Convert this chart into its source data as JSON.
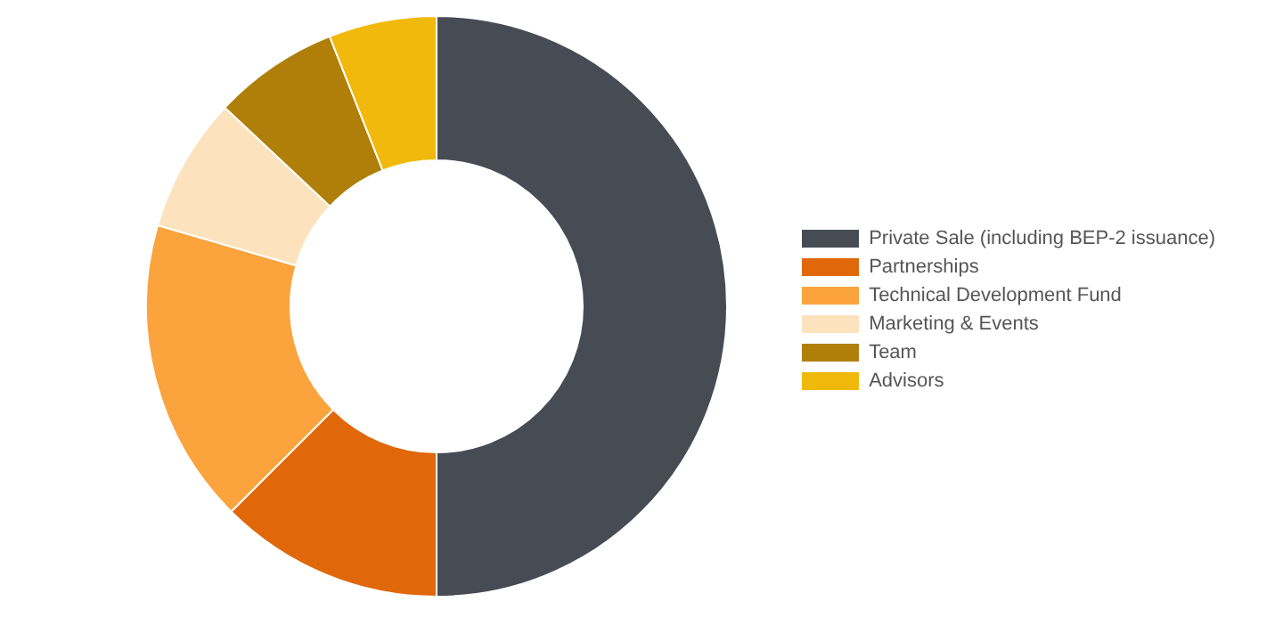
{
  "chart_data": {
    "type": "donut",
    "categories": [
      "Private Sale (including BEP-2 issuance)",
      "Partnerships",
      "Technical Development Fund",
      "Marketing & Events",
      "Team",
      "Advisors"
    ],
    "values": [
      50,
      12.5,
      17,
      7.5,
      7,
      6
    ],
    "colors": [
      "#474b54",
      "#e0680b",
      "#fba33d",
      "#fde3bd",
      "#b07f09",
      "#f0b90b"
    ],
    "legend": "right"
  }
}
